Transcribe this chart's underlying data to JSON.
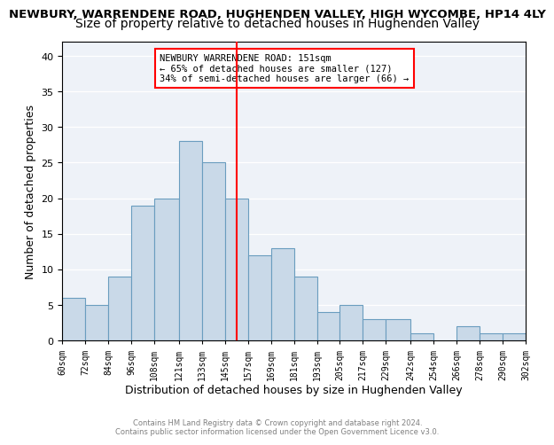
{
  "title1": "NEWBURY, WARRENDENE ROAD, HUGHENDEN VALLEY, HIGH WYCOMBE, HP14 4LY",
  "title2": "Size of property relative to detached houses in Hughenden Valley",
  "xlabel": "Distribution of detached houses by size in Hughenden Valley",
  "ylabel": "Number of detached properties",
  "bin_labels": [
    "60sqm",
    "72sqm",
    "84sqm",
    "96sqm",
    "108sqm",
    "121sqm",
    "133sqm",
    "145sqm",
    "157sqm",
    "169sqm",
    "181sqm",
    "193sqm",
    "205sqm",
    "217sqm",
    "229sqm",
    "242sqm",
    "254sqm",
    "266sqm",
    "278sqm",
    "290sqm",
    "302sqm"
  ],
  "bin_edges": [
    60,
    72,
    84,
    96,
    108,
    121,
    133,
    145,
    157,
    169,
    181,
    193,
    205,
    217,
    229,
    242,
    254,
    266,
    278,
    290,
    302
  ],
  "bar_heights": [
    6,
    5,
    9,
    19,
    20,
    28,
    25,
    20,
    12,
    13,
    9,
    4,
    5,
    3,
    3,
    1,
    0,
    2,
    1,
    1
  ],
  "bar_color": "#c9d9e8",
  "bar_edge_color": "#6a9dbf",
  "vline_x": 151,
  "vline_color": "red",
  "annotation_text": "NEWBURY WARRENDENE ROAD: 151sqm\n← 65% of detached houses are smaller (127)\n34% of semi-detached houses are larger (66) →",
  "annotation_box_color": "white",
  "annotation_box_edge_color": "red",
  "ylim": [
    0,
    42
  ],
  "yticks": [
    0,
    5,
    10,
    15,
    20,
    25,
    30,
    35,
    40
  ],
  "bg_color": "#eef2f8",
  "footer_text": "Contains HM Land Registry data © Crown copyright and database right 2024.\nContains public sector information licensed under the Open Government Licence v3.0.",
  "title1_fontsize": 9.5,
  "title2_fontsize": 10,
  "xlabel_fontsize": 9,
  "ylabel_fontsize": 9
}
